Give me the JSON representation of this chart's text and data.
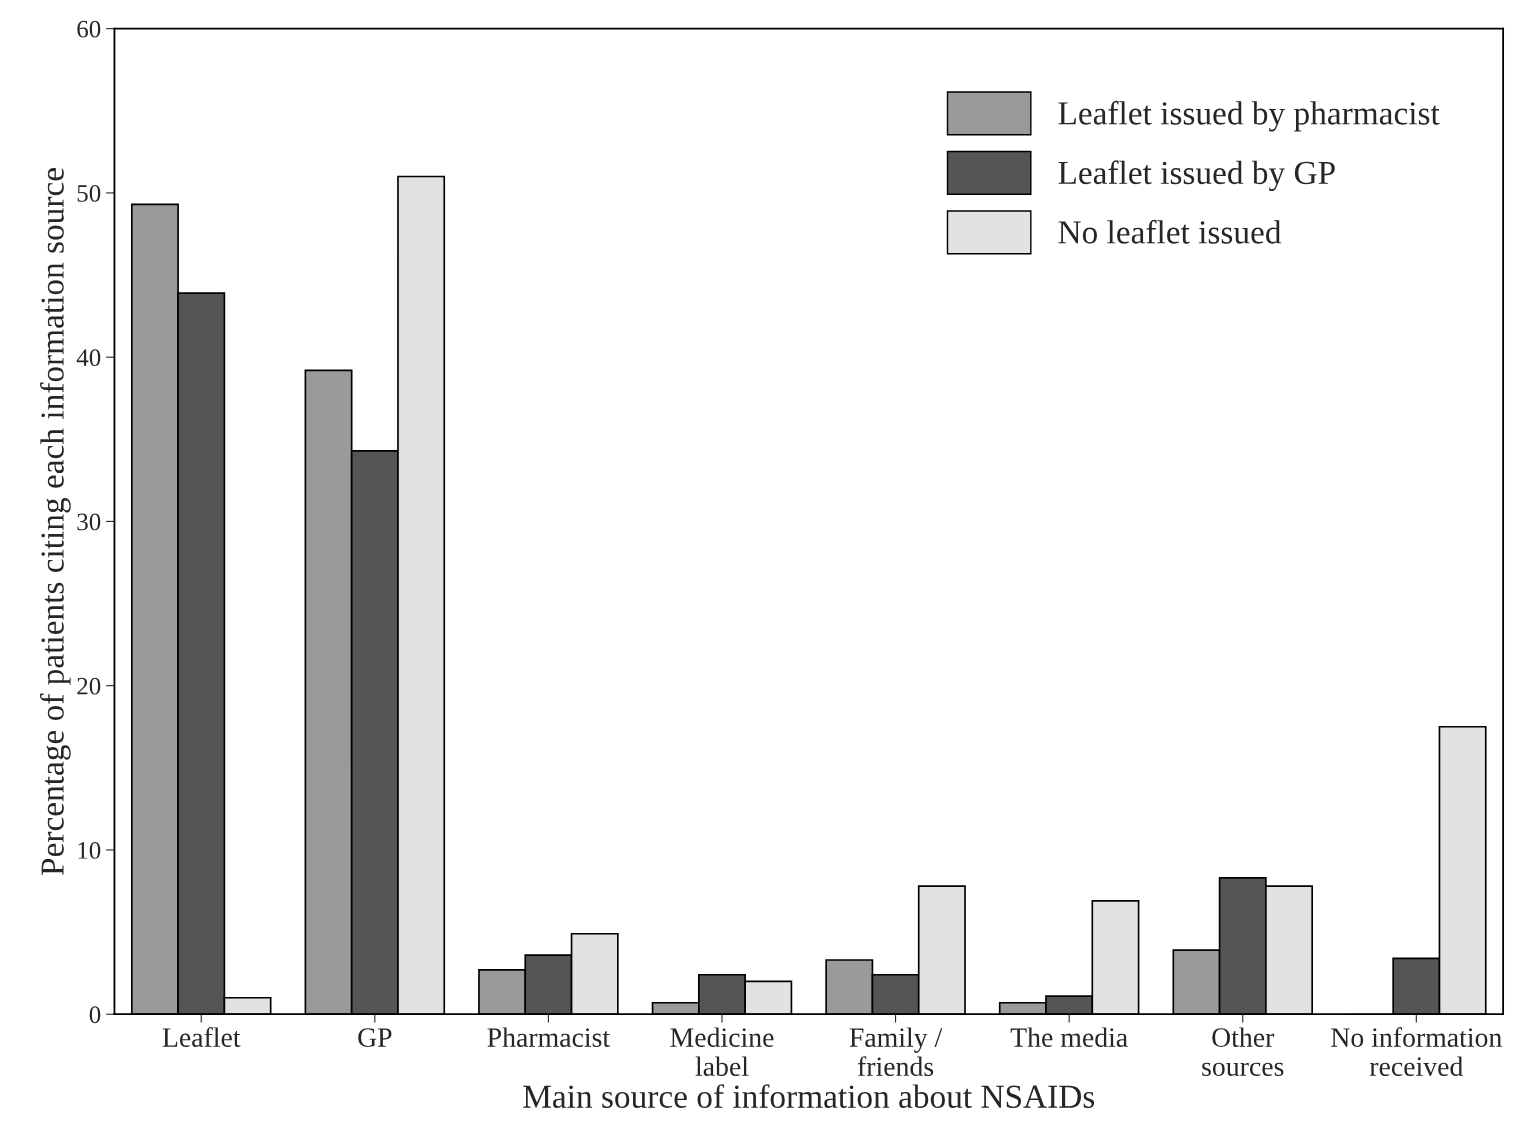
{
  "chart_data": {
    "type": "bar",
    "xlabel": "Main source of information about NSAIDs",
    "ylabel": "Percentage of patients citing each information source",
    "categories": [
      "Leaflet",
      "GP",
      "Pharmacist",
      "Medicine\nlabel",
      "Family /\nfriends",
      "The media",
      "Other\nsources",
      "No information\nreceived"
    ],
    "series": [
      {
        "name": "Leaflet issued by pharmacist",
        "color": "#9a9a9a",
        "values": [
          49.3,
          39.2,
          2.7,
          0.7,
          3.3,
          0.7,
          3.9,
          0
        ]
      },
      {
        "name": "Leaflet issued by GP",
        "color": "#555555",
        "values": [
          43.9,
          34.3,
          3.6,
          2.4,
          2.4,
          1.1,
          8.3,
          3.4
        ]
      },
      {
        "name": "No leaflet issued",
        "color": "#e2e2e2",
        "values": [
          1.0,
          51.0,
          4.9,
          2.0,
          7.8,
          6.9,
          7.8,
          17.5
        ]
      }
    ],
    "ylim": [
      0,
      60
    ],
    "yticks": [
      0,
      10,
      20,
      30,
      40,
      50,
      60
    ],
    "grid": false,
    "legend": "top right"
  }
}
